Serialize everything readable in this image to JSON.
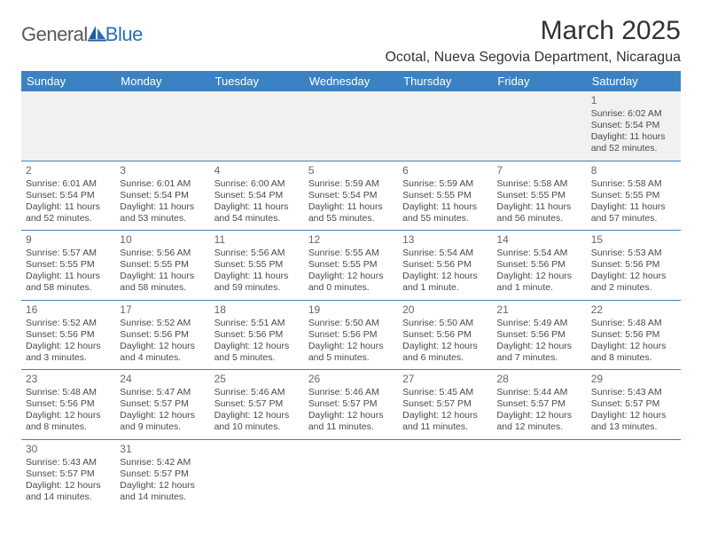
{
  "logo": {
    "text1": "General",
    "text2": "Blue"
  },
  "title": "March 2025",
  "location": "Ocotal, Nueva Segovia Department, Nicaragua",
  "colors": {
    "header_bg": "#3b82c4",
    "header_text": "#ffffff",
    "border": "#3b82c4",
    "logo_gray": "#5a5a5a",
    "logo_blue": "#2a6fb5",
    "body_text": "#4a4a4a",
    "first_row_bg": "#f1f1f1"
  },
  "weekdays": [
    "Sunday",
    "Monday",
    "Tuesday",
    "Wednesday",
    "Thursday",
    "Friday",
    "Saturday"
  ],
  "weeks": [
    [
      null,
      null,
      null,
      null,
      null,
      null,
      {
        "n": "1",
        "sunrise": "6:02 AM",
        "sunset": "5:54 PM",
        "daylight": "11 hours and 52 minutes."
      }
    ],
    [
      {
        "n": "2",
        "sunrise": "6:01 AM",
        "sunset": "5:54 PM",
        "daylight": "11 hours and 52 minutes."
      },
      {
        "n": "3",
        "sunrise": "6:01 AM",
        "sunset": "5:54 PM",
        "daylight": "11 hours and 53 minutes."
      },
      {
        "n": "4",
        "sunrise": "6:00 AM",
        "sunset": "5:54 PM",
        "daylight": "11 hours and 54 minutes."
      },
      {
        "n": "5",
        "sunrise": "5:59 AM",
        "sunset": "5:54 PM",
        "daylight": "11 hours and 55 minutes."
      },
      {
        "n": "6",
        "sunrise": "5:59 AM",
        "sunset": "5:55 PM",
        "daylight": "11 hours and 55 minutes."
      },
      {
        "n": "7",
        "sunrise": "5:58 AM",
        "sunset": "5:55 PM",
        "daylight": "11 hours and 56 minutes."
      },
      {
        "n": "8",
        "sunrise": "5:58 AM",
        "sunset": "5:55 PM",
        "daylight": "11 hours and 57 minutes."
      }
    ],
    [
      {
        "n": "9",
        "sunrise": "5:57 AM",
        "sunset": "5:55 PM",
        "daylight": "11 hours and 58 minutes."
      },
      {
        "n": "10",
        "sunrise": "5:56 AM",
        "sunset": "5:55 PM",
        "daylight": "11 hours and 58 minutes."
      },
      {
        "n": "11",
        "sunrise": "5:56 AM",
        "sunset": "5:55 PM",
        "daylight": "11 hours and 59 minutes."
      },
      {
        "n": "12",
        "sunrise": "5:55 AM",
        "sunset": "5:55 PM",
        "daylight": "12 hours and 0 minutes."
      },
      {
        "n": "13",
        "sunrise": "5:54 AM",
        "sunset": "5:56 PM",
        "daylight": "12 hours and 1 minute."
      },
      {
        "n": "14",
        "sunrise": "5:54 AM",
        "sunset": "5:56 PM",
        "daylight": "12 hours and 1 minute."
      },
      {
        "n": "15",
        "sunrise": "5:53 AM",
        "sunset": "5:56 PM",
        "daylight": "12 hours and 2 minutes."
      }
    ],
    [
      {
        "n": "16",
        "sunrise": "5:52 AM",
        "sunset": "5:56 PM",
        "daylight": "12 hours and 3 minutes."
      },
      {
        "n": "17",
        "sunrise": "5:52 AM",
        "sunset": "5:56 PM",
        "daylight": "12 hours and 4 minutes."
      },
      {
        "n": "18",
        "sunrise": "5:51 AM",
        "sunset": "5:56 PM",
        "daylight": "12 hours and 5 minutes."
      },
      {
        "n": "19",
        "sunrise": "5:50 AM",
        "sunset": "5:56 PM",
        "daylight": "12 hours and 5 minutes."
      },
      {
        "n": "20",
        "sunrise": "5:50 AM",
        "sunset": "5:56 PM",
        "daylight": "12 hours and 6 minutes."
      },
      {
        "n": "21",
        "sunrise": "5:49 AM",
        "sunset": "5:56 PM",
        "daylight": "12 hours and 7 minutes."
      },
      {
        "n": "22",
        "sunrise": "5:48 AM",
        "sunset": "5:56 PM",
        "daylight": "12 hours and 8 minutes."
      }
    ],
    [
      {
        "n": "23",
        "sunrise": "5:48 AM",
        "sunset": "5:56 PM",
        "daylight": "12 hours and 8 minutes."
      },
      {
        "n": "24",
        "sunrise": "5:47 AM",
        "sunset": "5:57 PM",
        "daylight": "12 hours and 9 minutes."
      },
      {
        "n": "25",
        "sunrise": "5:46 AM",
        "sunset": "5:57 PM",
        "daylight": "12 hours and 10 minutes."
      },
      {
        "n": "26",
        "sunrise": "5:46 AM",
        "sunset": "5:57 PM",
        "daylight": "12 hours and 11 minutes."
      },
      {
        "n": "27",
        "sunrise": "5:45 AM",
        "sunset": "5:57 PM",
        "daylight": "12 hours and 11 minutes."
      },
      {
        "n": "28",
        "sunrise": "5:44 AM",
        "sunset": "5:57 PM",
        "daylight": "12 hours and 12 minutes."
      },
      {
        "n": "29",
        "sunrise": "5:43 AM",
        "sunset": "5:57 PM",
        "daylight": "12 hours and 13 minutes."
      }
    ],
    [
      {
        "n": "30",
        "sunrise": "5:43 AM",
        "sunset": "5:57 PM",
        "daylight": "12 hours and 14 minutes."
      },
      {
        "n": "31",
        "sunrise": "5:42 AM",
        "sunset": "5:57 PM",
        "daylight": "12 hours and 14 minutes."
      },
      null,
      null,
      null,
      null,
      null
    ]
  ],
  "labels": {
    "sunrise": "Sunrise: ",
    "sunset": "Sunset: ",
    "daylight": "Daylight: "
  }
}
